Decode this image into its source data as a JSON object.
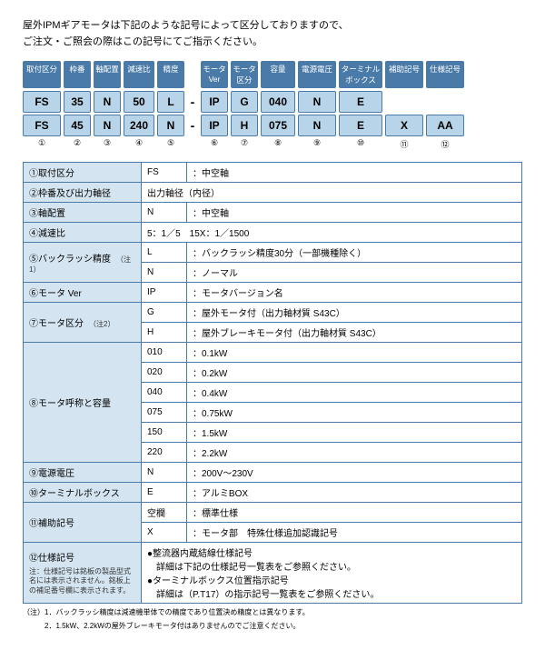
{
  "intro_line1": "屋外IPMギアモータは下記のような記号によって区分しておりますので、",
  "intro_line2": "ご注文・ご照会の際はこの記号にてご指示ください。",
  "headers": [
    "取付区分",
    "枠番",
    "軸配置",
    "減速比",
    "精度",
    "モータVer",
    "モータ区分",
    "容量",
    "電源電圧",
    "ターミナルボックス",
    "補助記号",
    "仕様記号"
  ],
  "row1": [
    "FS",
    "35",
    "N",
    "50",
    "L",
    "IP",
    "G",
    "040",
    "N",
    "E",
    "",
    ""
  ],
  "row2": [
    "FS",
    "45",
    "N",
    "240",
    "N",
    "IP",
    "H",
    "075",
    "N",
    "E",
    "X",
    "AA"
  ],
  "nums": [
    "①",
    "②",
    "③",
    "④",
    "⑤",
    "⑥",
    "⑦",
    "⑧",
    "⑨",
    "⑩",
    "⑪",
    "⑫"
  ],
  "spec": [
    {
      "n": "①取付区分",
      "rows": [
        [
          "FS",
          "：中空軸"
        ]
      ]
    },
    {
      "n": "②枠番及び出力軸径",
      "rows": [
        [
          "",
          "出力軸径（内径）"
        ]
      ],
      "span": true
    },
    {
      "n": "③軸配置",
      "rows": [
        [
          "N",
          "：中空軸"
        ]
      ]
    },
    {
      "n": "④減速比",
      "rows": [
        [
          "",
          "5：1／5　15X：1／1500"
        ]
      ],
      "span": true
    },
    {
      "n": "⑤バックラッシ精度",
      "note": "（注1）",
      "rows": [
        [
          "L",
          "：バックラッシ精度30分（一部機種除く）"
        ],
        [
          "N",
          "：ノーマル"
        ]
      ]
    },
    {
      "n": "⑥モータ Ver",
      "rows": [
        [
          "IP",
          "：モータバージョン名"
        ]
      ]
    },
    {
      "n": "⑦モータ区分",
      "note": "（注2）",
      "rows": [
        [
          "G",
          "：屋外モータ付（出力軸材質 S43C）"
        ],
        [
          "H",
          "：屋外ブレーキモータ付（出力軸材質 S43C）"
        ]
      ]
    },
    {
      "n": "⑧モータ呼称と容量",
      "rows": [
        [
          "010",
          "：0.1kW"
        ],
        [
          "020",
          "：0.2kW"
        ],
        [
          "040",
          "：0.4kW"
        ],
        [
          "075",
          "：0.75kW"
        ],
        [
          "150",
          "：1.5kW"
        ],
        [
          "220",
          "：2.2kW"
        ]
      ]
    },
    {
      "n": "⑨電源電圧",
      "rows": [
        [
          "N",
          "：200V～230V"
        ]
      ]
    },
    {
      "n": "⑩ターミナルボックス",
      "rows": [
        [
          "E",
          "：アルミBOX"
        ]
      ]
    },
    {
      "n": "⑪補助記号",
      "rows": [
        [
          "空欄",
          "：標準仕様"
        ],
        [
          "X",
          "：モータ部　特殊仕様追加認識記号"
        ]
      ]
    },
    {
      "n": "⑫仕様記号",
      "foot": "注：仕様記号は銘板の製品型式名には表示されません。銘板上の補足番号欄に表示されます。",
      "bullets": [
        "●整流器内蔵結線仕様記号",
        "　詳細は下記の仕様記号一覧表をご参照ください。",
        "●ターミナルボックス位置指示記号",
        "　詳細は（P.T17）の指示記号一覧表をご参照ください。"
      ]
    }
  ],
  "footnotes": [
    "（注）1．バックラッシ精度は減速機単体での精度であり位置決め精度とは異なります。",
    "　　　2．1.5kW、2.2kWの屋外ブレーキモータ付はありませんのでご注意ください。"
  ]
}
